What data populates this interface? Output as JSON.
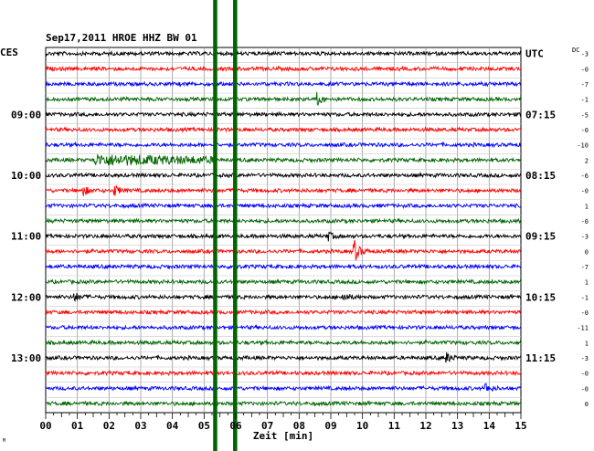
{
  "chart_data": {
    "type": "line",
    "title": "Sep17,2011  HROE HHZ BW 01",
    "left_corner_label": "CES",
    "right_corner_label": "UTC",
    "dc_label": "DC",
    "xlabel": "Zeit [min]",
    "x_ticks": [
      "00",
      "01",
      "02",
      "03",
      "04",
      "05",
      "06",
      "07",
      "08",
      "09",
      "10",
      "11",
      "12",
      "13",
      "14",
      "15"
    ],
    "xlim": [
      0,
      15
    ],
    "row_count": 24,
    "row_colors": [
      "#000000",
      "#ff0000",
      "#0000ff",
      "#006400"
    ],
    "left_time_labels": [
      {
        "row": 4,
        "text": "09:00"
      },
      {
        "row": 8,
        "text": "10:00"
      },
      {
        "row": 12,
        "text": "11:00"
      },
      {
        "row": 16,
        "text": "12:00"
      },
      {
        "row": 20,
        "text": "13:00"
      }
    ],
    "right_time_labels": [
      {
        "row": 0,
        "text": "UTC"
      },
      {
        "row": 4,
        "text": "07:15"
      },
      {
        "row": 8,
        "text": "08:15"
      },
      {
        "row": 12,
        "text": "09:15"
      },
      {
        "row": 16,
        "text": "10:15"
      },
      {
        "row": 20,
        "text": "11:15"
      }
    ],
    "dc_offsets": [
      "-3",
      "-0",
      "-7",
      "-1",
      "-5",
      "-0",
      "-10",
      "2",
      "-6",
      "-0",
      "1",
      "-0",
      "-3",
      "0",
      "-7",
      "1",
      "-1",
      "-0",
      "-11",
      "1",
      "-3",
      "-0",
      "-0",
      "0"
    ],
    "vertical_markers_min": [
      5.35,
      5.98
    ],
    "marker_color": "#006400",
    "events": [
      {
        "row": 3,
        "x_min": 8.55,
        "amplitude": "medium"
      },
      {
        "row": 7,
        "x_min": 1.5,
        "x_end_min": 5.4,
        "amplitude": "emergent"
      },
      {
        "row": 9,
        "x_min": 1.2,
        "amplitude": "small"
      },
      {
        "row": 9,
        "x_min": 2.2,
        "amplitude": "small"
      },
      {
        "row": 12,
        "x_min": 8.9,
        "amplitude": "small"
      },
      {
        "row": 13,
        "x_min": 9.75,
        "amplitude": "large"
      },
      {
        "row": 16,
        "x_min": 0.9,
        "amplitude": "small"
      },
      {
        "row": 16,
        "x_min": 9.4,
        "amplitude": "small"
      },
      {
        "row": 20,
        "x_min": 12.65,
        "amplitude": "small"
      },
      {
        "row": 22,
        "x_min": 13.9,
        "amplitude": "small"
      }
    ],
    "grid": true
  },
  "footer_mark": "M"
}
